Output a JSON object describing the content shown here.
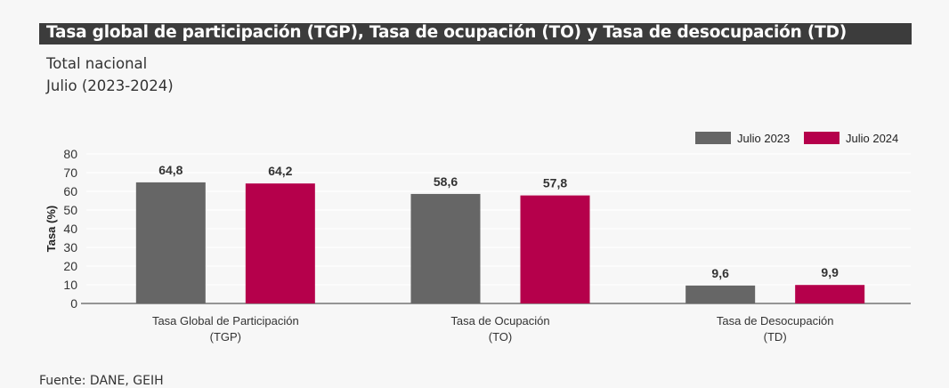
{
  "header": {
    "title": "Tasa global de participación (TGP), Tasa de ocupación (TO) y Tasa de desocupación (TD)",
    "subtitle_line1": "Total nacional",
    "subtitle_line2": "Julio (2023-2024)"
  },
  "footer": {
    "source": "Fuente: DANE, GEIH"
  },
  "chart_data": {
    "type": "bar",
    "categories": [
      [
        "Tasa Global de Participación",
        "(TGP)"
      ],
      [
        "Tasa de Ocupación",
        "(TO)"
      ],
      [
        "Tasa de Desocupación",
        "(TD)"
      ]
    ],
    "series": [
      {
        "name": "Julio 2023",
        "color": "#666666",
        "values": [
          64.8,
          58.6,
          9.6
        ],
        "labels": [
          "64,8",
          "58,6",
          "9,6"
        ]
      },
      {
        "name": "Julio 2024",
        "color": "#b5004b",
        "values": [
          64.2,
          57.8,
          9.9
        ],
        "labels": [
          "64,2",
          "57,8",
          "9,9"
        ]
      }
    ],
    "ylabel": "Tasa (%)",
    "xlabel": "",
    "ylim": [
      0,
      80
    ],
    "yticks": [
      0,
      10,
      20,
      30,
      40,
      50,
      60,
      70,
      80
    ],
    "grid": true,
    "legend": "top-right"
  }
}
